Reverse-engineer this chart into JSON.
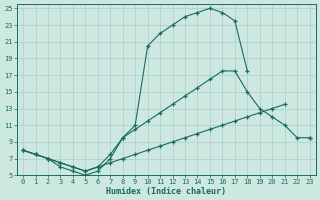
{
  "xlabel": "Humidex (Indice chaleur)",
  "bg_color": "#cce8e0",
  "grid_color": "#aacfc8",
  "line_color": "#1a6b5a",
  "xlim": [
    -0.5,
    23.5
  ],
  "ylim": [
    5,
    25.5
  ],
  "yticks": [
    5,
    7,
    9,
    11,
    13,
    15,
    17,
    19,
    21,
    23,
    25
  ],
  "xticks": [
    0,
    1,
    2,
    3,
    4,
    5,
    6,
    7,
    8,
    9,
    10,
    11,
    12,
    13,
    14,
    15,
    16,
    17,
    18,
    19,
    20,
    21,
    22,
    23
  ],
  "line_top_x": [
    0,
    1,
    2,
    3,
    4,
    5,
    6,
    7,
    8,
    9,
    10,
    11,
    12,
    13,
    14,
    15,
    16,
    17,
    18
  ],
  "line_top_y": [
    8.0,
    7.5,
    7.0,
    6.0,
    5.5,
    5.0,
    5.5,
    7.0,
    9.5,
    11.0,
    20.5,
    22.0,
    23.0,
    24.0,
    24.5,
    25.0,
    24.5,
    23.5,
    17.5
  ],
  "line_mid_x": [
    0,
    1,
    2,
    3,
    4,
    5,
    6,
    7,
    8,
    9,
    10,
    11,
    12,
    13,
    14,
    15,
    16,
    17,
    18,
    19,
    20,
    21,
    22,
    23
  ],
  "line_mid_y": [
    8.0,
    7.5,
    7.0,
    6.5,
    6.0,
    5.5,
    6.0,
    7.5,
    9.5,
    10.5,
    11.5,
    12.5,
    13.5,
    14.5,
    15.5,
    16.5,
    17.5,
    17.5,
    15.0,
    13.0,
    12.0,
    11.0,
    9.5,
    9.5
  ],
  "line_bot_x": [
    0,
    1,
    2,
    3,
    4,
    5,
    6,
    7,
    8,
    9,
    10,
    11,
    12,
    13,
    14,
    15,
    16,
    17,
    18,
    19,
    20,
    21,
    22,
    23
  ],
  "line_bot_y": [
    8.0,
    7.5,
    7.0,
    6.5,
    6.0,
    5.5,
    6.0,
    6.5,
    7.0,
    7.5,
    8.0,
    8.5,
    9.0,
    9.5,
    10.0,
    10.5,
    11.0,
    11.5,
    12.0,
    12.5,
    13.0,
    13.5,
    null,
    9.5
  ]
}
